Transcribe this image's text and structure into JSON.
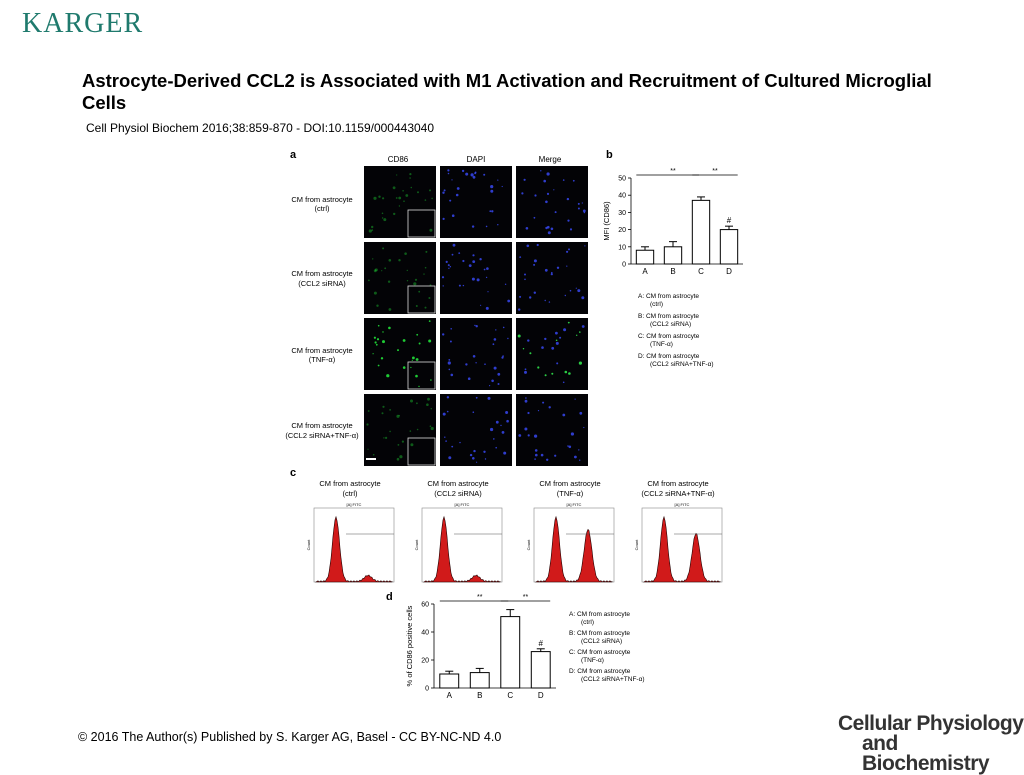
{
  "publisher": "KARGER",
  "title": "Astrocyte-Derived CCL2 is Associated with M1 Activation and Recruitment of Cultured Microglial Cells",
  "citation": "Cell Physiol Biochem 2016;38:859-870 -  DOI:10.1159/000443040",
  "footer": "© 2016 The Author(s) Published by S. Karger AG, Basel - CC BY-NC-ND 4.0",
  "journal": {
    "line1": "Cellular Physiology",
    "line2": "and Biochemistry"
  },
  "figure": {
    "panel_a": {
      "letter": "a",
      "columns": [
        "CD86",
        "DAPI",
        "Merge"
      ],
      "rows": [
        {
          "l1": "CM from astrocyte",
          "l2": "(ctrl)"
        },
        {
          "l1": "CM from astrocyte",
          "l2": "(CCL2 siRNA)"
        },
        {
          "l1": "CM from astrocyte",
          "l2": "(TNF-α)"
        },
        {
          "l1": "CM from astrocyte",
          "l2": "(CCL2 siRNA+TNF-α)"
        }
      ]
    },
    "panel_c": {
      "letter": "c",
      "histograms": [
        {
          "l1": "CM from astrocyte",
          "l2": "(ctrl)"
        },
        {
          "l1": "CM from astrocyte",
          "l2": "(CCL2 siRNA)"
        },
        {
          "l1": "CM from astrocyte",
          "l2": "(TNF-α)"
        },
        {
          "l1": "CM from astrocyte",
          "l2": "(CCL2 siRNA+TNF-α)"
        }
      ],
      "header": "[A] FITC",
      "count_label": "Count"
    },
    "legend": [
      {
        "l1": "A: CM from astrocyte",
        "l2": "(ctrl)"
      },
      {
        "l1": "B: CM from astrocyte",
        "l2": "(CCL2 siRNA)"
      },
      {
        "l1": "C: CM from astrocyte",
        "l2": "(TNF-α)"
      },
      {
        "l1": "D: CM from astrocyte",
        "l2": "(CCL2 siRNA+TNF-α)"
      }
    ]
  },
  "chart_data": [
    {
      "panel": "b",
      "type": "bar",
      "categories": [
        "A",
        "B",
        "C",
        "D"
      ],
      "values": [
        8,
        10,
        37,
        20
      ],
      "errors": [
        2,
        3,
        2,
        2
      ],
      "ylabel": "MFI (CD86)",
      "ylim": [
        0,
        50
      ],
      "yticks": [
        0,
        10,
        20,
        30,
        40,
        50
      ],
      "significance": [
        {
          "label": "**",
          "from": "A",
          "to": "C"
        },
        {
          "label": "**",
          "from": "C",
          "to": "D"
        }
      ],
      "annotations": [
        {
          "category": "D",
          "label": "#"
        }
      ]
    },
    {
      "panel": "d",
      "type": "bar",
      "categories": [
        "A",
        "B",
        "C",
        "D"
      ],
      "values": [
        10,
        11,
        51,
        26
      ],
      "errors": [
        2,
        3,
        5,
        2
      ],
      "ylabel": "% of CD86 positive cells",
      "ylim": [
        0,
        60
      ],
      "yticks": [
        0,
        20,
        40,
        60
      ],
      "significance": [
        {
          "label": "**",
          "from": "A",
          "to": "C"
        },
        {
          "label": "**",
          "from": "C",
          "to": "D"
        }
      ],
      "annotations": [
        {
          "category": "D",
          "label": "#"
        }
      ]
    }
  ]
}
